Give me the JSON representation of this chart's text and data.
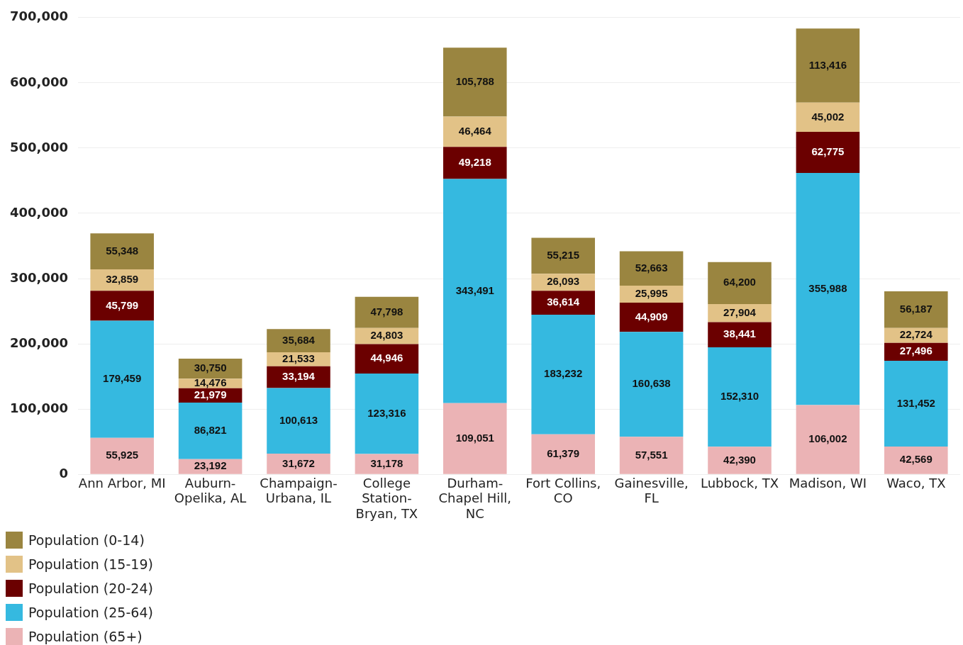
{
  "chart_data": {
    "type": "bar",
    "stacked": true,
    "categories": [
      "Ann Arbor, MI",
      "Auburn-Opelika, AL",
      "Champaign-Urbana, IL",
      "College Station-Bryan, TX",
      "Durham-Chapel Hill, NC",
      "Fort Collins, CO",
      "Gainesville, FL",
      "Lubbock, TX",
      "Madison, WI",
      "Waco, TX"
    ],
    "series": [
      {
        "name": "Population (65+)",
        "color": "#ebb3b5",
        "values": [
          55925,
          23192,
          31672,
          31178,
          109051,
          61379,
          57551,
          42390,
          106002,
          42569
        ],
        "value_labels": [
          "55,925",
          "23,192",
          "31,672",
          "31,178",
          "109,051",
          "61,379",
          "57,551",
          "42,390",
          "106,002",
          "42,569"
        ]
      },
      {
        "name": "Population (25-64)",
        "color": "#35b9e0",
        "values": [
          179459,
          86821,
          100613,
          123316,
          343491,
          183232,
          160638,
          152310,
          355988,
          131452
        ],
        "value_labels": [
          "179,459",
          "86,821",
          "100,613",
          "123,316",
          "343,491",
          "183,232",
          "160,638",
          "152,310",
          "355,988",
          "131,452"
        ]
      },
      {
        "name": "Population (20-24)",
        "color": "#6b0000",
        "values": [
          45799,
          21979,
          33194,
          44946,
          49218,
          36614,
          44909,
          38441,
          62775,
          27496
        ],
        "value_labels": [
          "45,799",
          "21,979",
          "33,194",
          "44,946",
          "49,218",
          "36,614",
          "44,909",
          "38,441",
          "62,775",
          "27,496"
        ]
      },
      {
        "name": "Population (15-19)",
        "color": "#e2c287",
        "values": [
          32859,
          14476,
          21533,
          24803,
          46464,
          26093,
          25995,
          27904,
          45002,
          22724
        ],
        "value_labels": [
          "32,859",
          "14,476",
          "21,533",
          "24,803",
          "46,464",
          "26,093",
          "25,995",
          "27,904",
          "45,002",
          "22,724"
        ]
      },
      {
        "name": "Population (0-14)",
        "color": "#9a8540",
        "values": [
          55348,
          30750,
          35684,
          47798,
          105788,
          55215,
          52663,
          64200,
          113416,
          56187
        ],
        "value_labels": [
          "55,348",
          "30,750",
          "35,684",
          "47,798",
          "105,788",
          "55,215",
          "52,663",
          "64,200",
          "113,416",
          "56,187"
        ]
      }
    ],
    "ylim": [
      0,
      700000
    ],
    "yticks": [
      {
        "value": 0,
        "label": "0"
      },
      {
        "value": 100000,
        "label": "100,000"
      },
      {
        "value": 200000,
        "label": "200,000"
      },
      {
        "value": 300000,
        "label": "300,000"
      },
      {
        "value": 400000,
        "label": "400,000"
      },
      {
        "value": 500000,
        "label": "500,000"
      },
      {
        "value": 600000,
        "label": "600,000"
      },
      {
        "value": 700000,
        "label": "700,000"
      }
    ],
    "grid": "y",
    "legend": "bottom left"
  }
}
